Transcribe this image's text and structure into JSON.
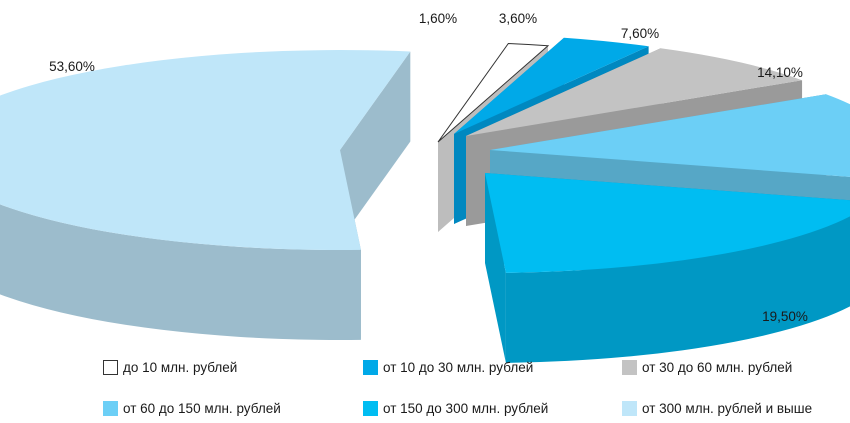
{
  "chart_data": {
    "type": "pie",
    "style": "3d-exploded",
    "series": [
      {
        "name": "до 10 млн. рублей",
        "value": 1.6,
        "label": "1,60%",
        "color": "#ffffff",
        "side_color": "#bdbdbd",
        "stroke": "#333333"
      },
      {
        "name": "от 10 до 30 млн. рублей",
        "value": 3.6,
        "label": "3,60%",
        "color": "#00a9e8",
        "side_color": "#0088c0",
        "stroke": "none"
      },
      {
        "name": "от 30 до 60 млн. рублей",
        "value": 7.6,
        "label": "7,60%",
        "color": "#c3c3c3",
        "side_color": "#9a9a9a",
        "stroke": "none"
      },
      {
        "name": "от 60 до 150 млн. рублей",
        "value": 14.1,
        "label": "14,10%",
        "color": "#6ccff6",
        "side_color": "#56a7c6",
        "stroke": "none"
      },
      {
        "name": "от 150 до 300 млн. рублей",
        "value": 19.5,
        "label": "19,50%",
        "color": "#00bdf2",
        "side_color": "#0098c4",
        "stroke": "none"
      },
      {
        "name": "от 300 млн. рублей и выше",
        "value": 53.6,
        "label": "53,60%",
        "color": "#bfe6f9",
        "side_color": "#9cbccc",
        "stroke": "none"
      }
    ],
    "legend_position": "bottom"
  }
}
